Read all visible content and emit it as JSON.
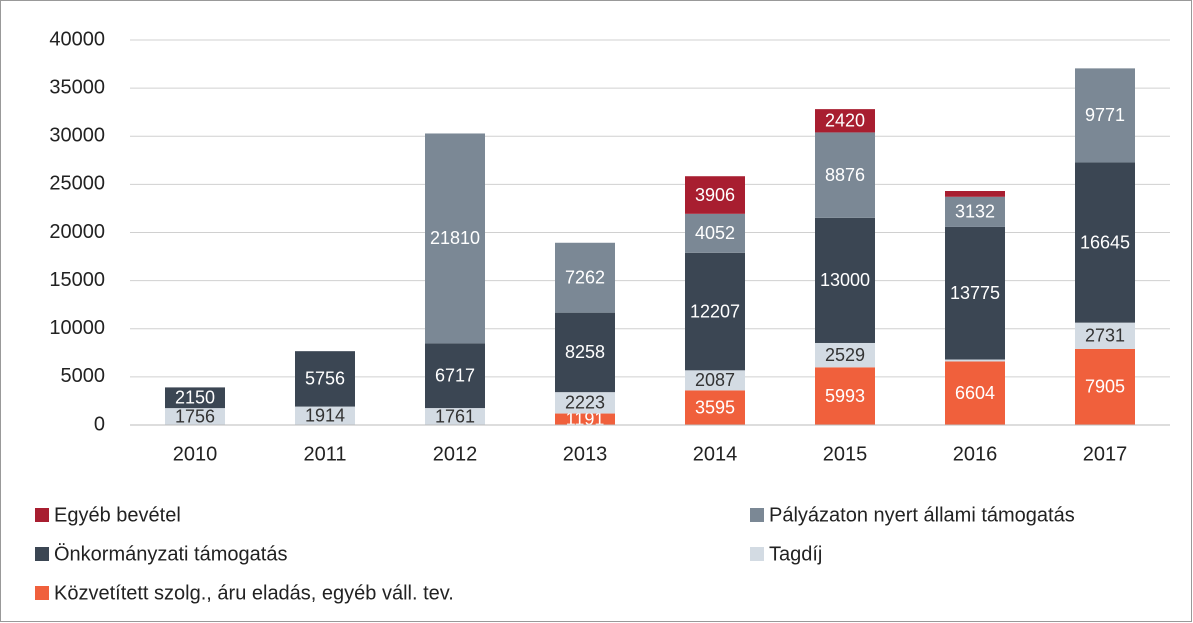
{
  "chart_data": {
    "type": "stacked_bar",
    "categories": [
      "2010",
      "2011",
      "2012",
      "2013",
      "2014",
      "2015",
      "2016",
      "2017"
    ],
    "series": [
      {
        "name": "Közvetített szolg., áru eladás, egyéb váll. tev.",
        "color": "#f0603c",
        "label_color": "#ffffff",
        "values": [
          0,
          0,
          0,
          1191,
          3595,
          5993,
          6604,
          7905
        ],
        "value_labels": [
          null,
          null,
          null,
          "1191",
          "3595",
          "5993",
          "6604",
          "7905"
        ]
      },
      {
        "name": "Tagdíj",
        "color": "#d3dbe3",
        "label_color": "#333333",
        "values": [
          1756,
          1914,
          1761,
          2223,
          2087,
          2529,
          200,
          2731
        ],
        "value_labels": [
          "1756",
          "1914",
          "1761",
          "2223",
          "2087",
          "2529",
          null,
          "2731"
        ]
      },
      {
        "name": "Önkormányzati támogatás",
        "color": "#3b4653",
        "label_color": "#ffffff",
        "values": [
          2150,
          5756,
          6717,
          8258,
          12207,
          13000,
          13775,
          16645
        ],
        "value_labels": [
          "2150",
          "5756",
          "6717",
          "8258",
          "12207",
          "13000",
          "13775",
          "16645"
        ]
      },
      {
        "name": "Pályázaton nyert állami támogatás",
        "color": "#7b8895",
        "label_color": "#ffffff",
        "values": [
          0,
          0,
          21810,
          7262,
          4052,
          8876,
          3132,
          9771
        ],
        "value_labels": [
          null,
          null,
          "21810",
          "7262",
          "4052",
          "8876",
          "3132",
          "9771"
        ]
      },
      {
        "name": "Egyéb bevétel",
        "color": "#a81e30",
        "label_color": "#ffffff",
        "values": [
          0,
          0,
          0,
          0,
          3906,
          2420,
          600,
          0
        ],
        "value_labels": [
          null,
          null,
          null,
          null,
          "3906",
          "2420",
          null,
          null
        ]
      }
    ],
    "ylim": [
      0,
      40000
    ],
    "yticks": [
      0,
      5000,
      10000,
      15000,
      20000,
      25000,
      30000,
      35000,
      40000
    ],
    "grid": true
  }
}
